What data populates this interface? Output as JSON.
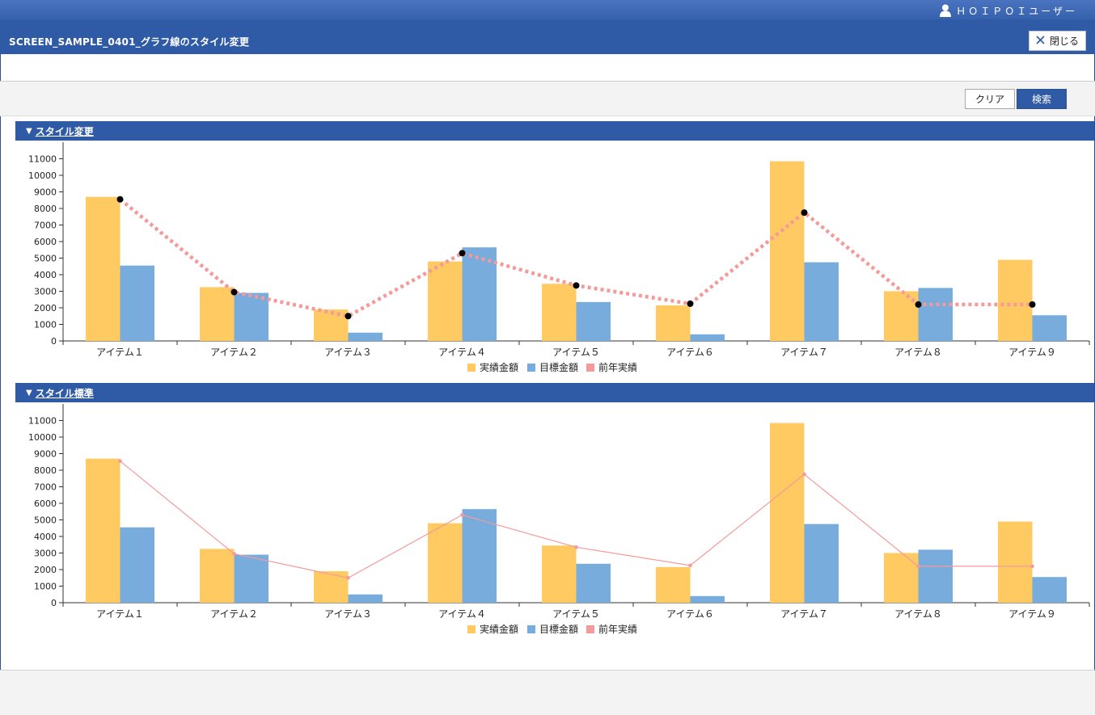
{
  "header": {
    "user_name": "ＨＯＩＰＯＩユーザー",
    "screen_title": "SCREEN_SAMPLE_0401_グラフ線のスタイル変更",
    "close_label": "閉じる",
    "icons": {
      "user": "user-icon",
      "close": "close-icon"
    }
  },
  "toolbar": {
    "clear_label": "クリア",
    "search_label": "検索"
  },
  "sections": [
    {
      "title": "スタイル変更",
      "icon": "triangle-down-icon"
    },
    {
      "title": "スタイル標準",
      "icon": "triangle-down-icon"
    }
  ],
  "colors": {
    "actual": "#ffca62",
    "target": "#77acdc",
    "previous": "#f59a9a",
    "header_blue": "#2f5aa6"
  },
  "chart_data": [
    {
      "type": "bar",
      "categories": [
        "アイテム１",
        "アイテム２",
        "アイテム３",
        "アイテム４",
        "アイテム５",
        "アイテム６",
        "アイテム７",
        "アイテム８",
        "アイテム９"
      ],
      "series": [
        {
          "name": "実績金額",
          "type": "bar",
          "values": [
            8700,
            3250,
            1900,
            4800,
            3450,
            2150,
            10850,
            3000,
            4900
          ]
        },
        {
          "name": "目標金額",
          "type": "bar",
          "values": [
            4550,
            2900,
            500,
            5650,
            2350,
            400,
            4750,
            3200,
            1550
          ]
        },
        {
          "name": "前年実績",
          "type": "line",
          "style": "dotted-thick-with-black-markers",
          "values": [
            8550,
            2950,
            1500,
            5300,
            3350,
            2250,
            7750,
            2200,
            2200
          ]
        }
      ],
      "yticks": [
        0,
        1000,
        2000,
        3000,
        4000,
        5000,
        6000,
        7000,
        8000,
        9000,
        10000,
        11000
      ],
      "ylim": [
        0,
        12000
      ],
      "legend": "bottom-center"
    },
    {
      "type": "bar",
      "categories": [
        "アイテム１",
        "アイテム２",
        "アイテム３",
        "アイテム４",
        "アイテム５",
        "アイテム６",
        "アイテム７",
        "アイテム８",
        "アイテム９"
      ],
      "series": [
        {
          "name": "実績金額",
          "type": "bar",
          "values": [
            8700,
            3250,
            1900,
            4800,
            3450,
            2150,
            10850,
            3000,
            4900
          ]
        },
        {
          "name": "目標金額",
          "type": "bar",
          "values": [
            4550,
            2900,
            500,
            5650,
            2350,
            400,
            4750,
            3200,
            1550
          ]
        },
        {
          "name": "前年実績",
          "type": "line",
          "style": "thin-solid-with-small-markers",
          "values": [
            8550,
            2950,
            1500,
            5300,
            3350,
            2250,
            7750,
            2200,
            2200
          ]
        }
      ],
      "yticks": [
        0,
        1000,
        2000,
        3000,
        4000,
        5000,
        6000,
        7000,
        8000,
        9000,
        10000,
        11000
      ],
      "ylim": [
        0,
        12000
      ],
      "legend": "bottom-center"
    }
  ]
}
